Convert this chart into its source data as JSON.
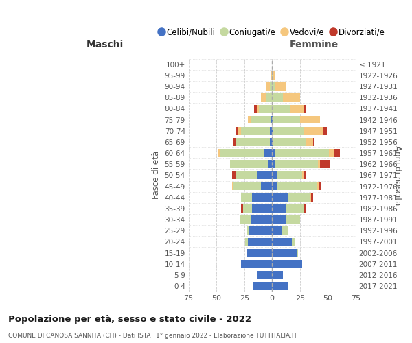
{
  "age_groups": [
    "100+",
    "95-99",
    "90-94",
    "85-89",
    "80-84",
    "75-79",
    "70-74",
    "65-69",
    "60-64",
    "55-59",
    "50-54",
    "45-49",
    "40-44",
    "35-39",
    "30-34",
    "25-29",
    "20-24",
    "15-19",
    "10-14",
    "5-9",
    "0-4"
  ],
  "birth_years": [
    "≤ 1921",
    "1922-1926",
    "1927-1931",
    "1932-1936",
    "1937-1941",
    "1942-1946",
    "1947-1951",
    "1952-1956",
    "1957-1961",
    "1962-1966",
    "1967-1971",
    "1972-1976",
    "1977-1981",
    "1982-1986",
    "1987-1991",
    "1992-1996",
    "1997-2001",
    "2002-2006",
    "2007-2011",
    "2012-2016",
    "2017-2021"
  ],
  "maschi": {
    "celibi": [
      0,
      0,
      0,
      0,
      0,
      1,
      2,
      2,
      7,
      4,
      13,
      10,
      18,
      18,
      19,
      21,
      22,
      23,
      28,
      13,
      17
    ],
    "coniugati": [
      0,
      0,
      2,
      6,
      12,
      18,
      26,
      30,
      40,
      34,
      20,
      25,
      10,
      8,
      10,
      2,
      2,
      0,
      0,
      0,
      0
    ],
    "vedovi": [
      0,
      1,
      3,
      4,
      2,
      3,
      3,
      1,
      1,
      0,
      0,
      1,
      0,
      0,
      0,
      0,
      0,
      0,
      0,
      0,
      0
    ],
    "divorziati": [
      0,
      0,
      0,
      0,
      2,
      0,
      2,
      2,
      1,
      0,
      3,
      0,
      0,
      2,
      0,
      0,
      0,
      0,
      0,
      0,
      0
    ]
  },
  "femmine": {
    "nubili": [
      0,
      0,
      0,
      0,
      0,
      1,
      1,
      1,
      3,
      3,
      5,
      5,
      14,
      13,
      12,
      9,
      18,
      22,
      27,
      10,
      14
    ],
    "coniugate": [
      0,
      1,
      3,
      10,
      16,
      24,
      27,
      30,
      48,
      38,
      22,
      35,
      20,
      16,
      13,
      5,
      3,
      1,
      0,
      0,
      0
    ],
    "vedove": [
      0,
      2,
      9,
      15,
      12,
      18,
      18,
      6,
      5,
      2,
      1,
      2,
      1,
      0,
      0,
      0,
      0,
      0,
      0,
      0,
      0
    ],
    "divorziate": [
      0,
      0,
      0,
      0,
      2,
      0,
      3,
      1,
      5,
      9,
      2,
      2,
      2,
      2,
      0,
      0,
      0,
      0,
      0,
      0,
      0
    ]
  },
  "colors": {
    "celibi": "#4472c4",
    "coniugati": "#c5d9a0",
    "vedovi": "#f5c77e",
    "divorziati": "#c0392b"
  },
  "title": "Popolazione per età, sesso e stato civile - 2022",
  "subtitle": "COMUNE DI CANOSA SANNITA (CH) - Dati ISTAT 1° gennaio 2022 - Elaborazione TUTTITALIA.IT",
  "label_maschi": "Maschi",
  "label_femmine": "Femmine",
  "ylabel_left": "Fasce di età",
  "ylabel_right": "Anni di nascita",
  "xlim": 75,
  "bg_color": "#ffffff",
  "grid_color": "#cccccc"
}
